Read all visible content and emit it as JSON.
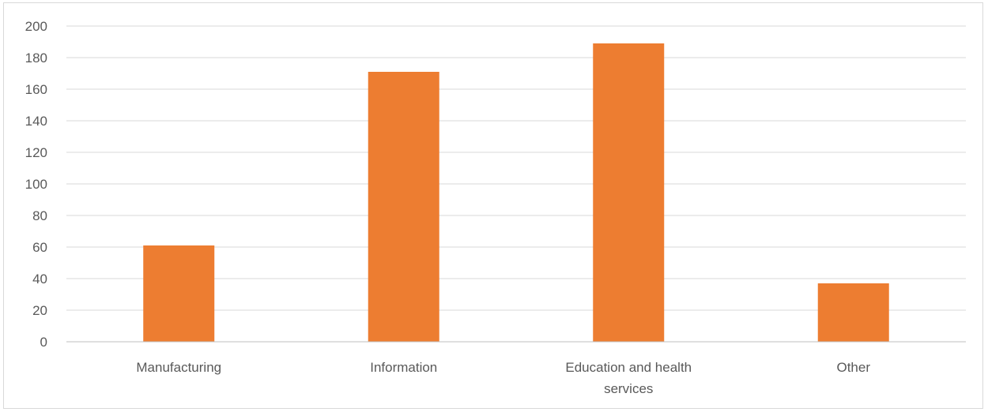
{
  "chart_data": {
    "type": "bar",
    "title": "",
    "xlabel": "",
    "ylabel": "",
    "categories": [
      [
        "Manufacturing"
      ],
      [
        "Information"
      ],
      [
        "Education and health",
        "services"
      ],
      [
        "Other"
      ]
    ],
    "values": [
      61,
      171,
      189,
      37
    ],
    "ylim": [
      0,
      200
    ],
    "yticks": [
      0,
      20,
      40,
      60,
      80,
      100,
      120,
      140,
      160,
      180,
      200
    ],
    "grid": true,
    "legend": "none",
    "colors": {
      "bar": "#ed7d31",
      "grid": "#d9d9d9",
      "axis": "#bfbfbf",
      "text": "#595959"
    }
  }
}
